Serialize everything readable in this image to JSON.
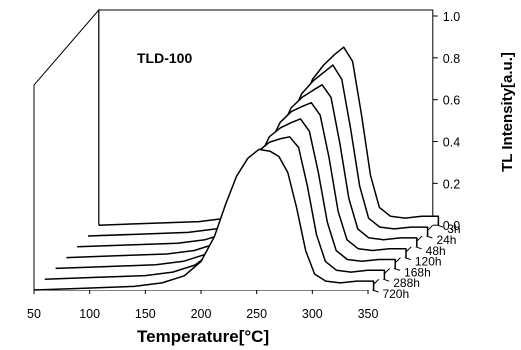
{
  "chart_data": {
    "type": "line",
    "title": "TLD-100",
    "xlabel": "Temperature[°C]",
    "zlabel": "TL Intensity[a.u.]",
    "x_ticks": [
      50,
      100,
      150,
      200,
      250,
      300,
      350
    ],
    "xlim": [
      50,
      350
    ],
    "z_ticks": [
      "0.0",
      "0.2",
      "0.4",
      "0.6",
      "0.8",
      "1.0"
    ],
    "zlim": [
      0,
      1
    ],
    "series": [
      {
        "name": "3h",
        "x": [
          95,
          140,
          165,
          185,
          200,
          212,
          222,
          232,
          242,
          252,
          262,
          270,
          278,
          286,
          294,
          302,
          312,
          325,
          340,
          355
        ],
        "values": [
          0.01,
          0.02,
          0.04,
          0.08,
          0.15,
          0.28,
          0.46,
          0.66,
          0.82,
          0.9,
          0.96,
          1.0,
          0.92,
          0.62,
          0.28,
          0.1,
          0.05,
          0.04,
          0.05,
          0.05
        ]
      },
      {
        "name": "24h",
        "x": [
          95,
          140,
          165,
          185,
          200,
          212,
          222,
          232,
          242,
          252,
          262,
          270,
          278,
          286,
          294,
          302,
          312,
          325,
          340,
          355
        ],
        "values": [
          0.01,
          0.02,
          0.04,
          0.08,
          0.15,
          0.28,
          0.46,
          0.66,
          0.8,
          0.87,
          0.92,
          0.96,
          0.88,
          0.6,
          0.28,
          0.1,
          0.05,
          0.04,
          0.05,
          0.05
        ]
      },
      {
        "name": "48h",
        "x": [
          95,
          140,
          165,
          185,
          200,
          212,
          222,
          232,
          242,
          252,
          262,
          270,
          278,
          286,
          294,
          302,
          312,
          325,
          340,
          355
        ],
        "values": [
          0.01,
          0.02,
          0.04,
          0.08,
          0.15,
          0.28,
          0.45,
          0.64,
          0.78,
          0.84,
          0.88,
          0.91,
          0.84,
          0.58,
          0.27,
          0.1,
          0.05,
          0.04,
          0.05,
          0.05
        ]
      },
      {
        "name": "120h",
        "x": [
          95,
          140,
          165,
          185,
          200,
          212,
          222,
          232,
          242,
          252,
          262,
          270,
          278,
          286,
          294,
          302,
          312,
          325,
          340,
          355
        ],
        "values": [
          0.01,
          0.02,
          0.04,
          0.08,
          0.15,
          0.28,
          0.45,
          0.63,
          0.76,
          0.82,
          0.85,
          0.87,
          0.8,
          0.56,
          0.26,
          0.1,
          0.05,
          0.04,
          0.05,
          0.05
        ]
      },
      {
        "name": "168h",
        "x": [
          95,
          140,
          165,
          185,
          200,
          212,
          222,
          232,
          242,
          252,
          262,
          270,
          278,
          286,
          294,
          302,
          312,
          325,
          340,
          355
        ],
        "values": [
          0.01,
          0.02,
          0.04,
          0.08,
          0.15,
          0.27,
          0.44,
          0.61,
          0.74,
          0.79,
          0.82,
          0.84,
          0.77,
          0.54,
          0.26,
          0.1,
          0.05,
          0.04,
          0.05,
          0.05
        ]
      },
      {
        "name": "288h",
        "x": [
          95,
          140,
          165,
          185,
          200,
          212,
          222,
          232,
          242,
          252,
          262,
          270,
          278,
          286,
          294,
          302,
          312,
          325,
          340,
          355
        ],
        "values": [
          0.01,
          0.02,
          0.04,
          0.08,
          0.15,
          0.27,
          0.43,
          0.6,
          0.72,
          0.77,
          0.79,
          0.8,
          0.74,
          0.52,
          0.25,
          0.1,
          0.05,
          0.04,
          0.05,
          0.05
        ]
      },
      {
        "name": "720h",
        "x": [
          95,
          140,
          165,
          185,
          200,
          212,
          222,
          232,
          242,
          252,
          262,
          270,
          278,
          286,
          294,
          302,
          312,
          325,
          340,
          355
        ],
        "values": [
          0.01,
          0.02,
          0.04,
          0.08,
          0.16,
          0.3,
          0.48,
          0.64,
          0.74,
          0.79,
          0.78,
          0.75,
          0.66,
          0.46,
          0.22,
          0.09,
          0.05,
          0.04,
          0.05,
          0.05
        ]
      }
    ]
  }
}
